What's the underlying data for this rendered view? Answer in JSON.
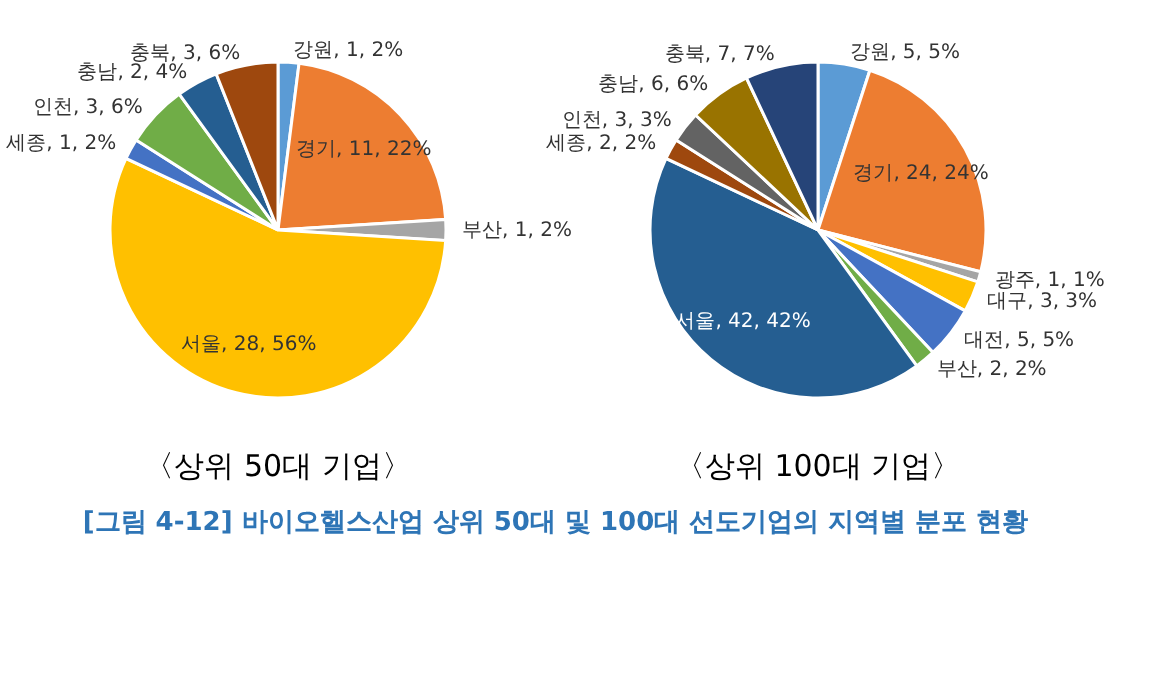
{
  "chart_data": [
    {
      "type": "pie",
      "title": "〈상위 50대 기업〉",
      "categories": [
        "강원",
        "경기",
        "부산",
        "서울",
        "세종",
        "인천",
        "충남",
        "충북"
      ],
      "values": [
        1,
        11,
        1,
        28,
        1,
        3,
        2,
        3
      ],
      "colors": [
        "#5b9bd5",
        "#ed7d31",
        "#a5a5a5",
        "#ffc000",
        "#4472c4",
        "#70ad47",
        "#255e91",
        "#9e480e"
      ],
      "value_labels": [
        "1, 2%",
        "11, 22%",
        "1, 2%",
        "28, 56%",
        "1, 2%",
        "3, 6%",
        "2, 4%",
        "3, 6%"
      ],
      "annotations": [
        "[그림 4-12] 바이오헬스산업 상위 50대 및 100대 선도기업의 지역별 분포 현황"
      ]
    },
    {
      "type": "pie",
      "title": "〈상위 100대 기업〉",
      "categories": [
        "강원",
        "경기",
        "광주",
        "대구",
        "대전",
        "부산",
        "서울",
        "세종",
        "인천",
        "충남",
        "충북"
      ],
      "values": [
        5,
        24,
        1,
        3,
        5,
        2,
        42,
        2,
        3,
        6,
        7
      ],
      "colors": [
        "#5b9bd5",
        "#ed7d31",
        "#a5a5a5",
        "#ffc000",
        "#4472c4",
        "#70ad47",
        "#255e91",
        "#9e480e",
        "#636363",
        "#997300",
        "#264478"
      ],
      "value_labels": [
        "5, 5%",
        "24, 24%",
        "1, 1%",
        "3, 3%",
        "5, 5%",
        "2, 2%",
        "42, 42%",
        "2, 2%",
        "3, 3%",
        "6, 6%",
        "7, 7%"
      ]
    }
  ]
}
